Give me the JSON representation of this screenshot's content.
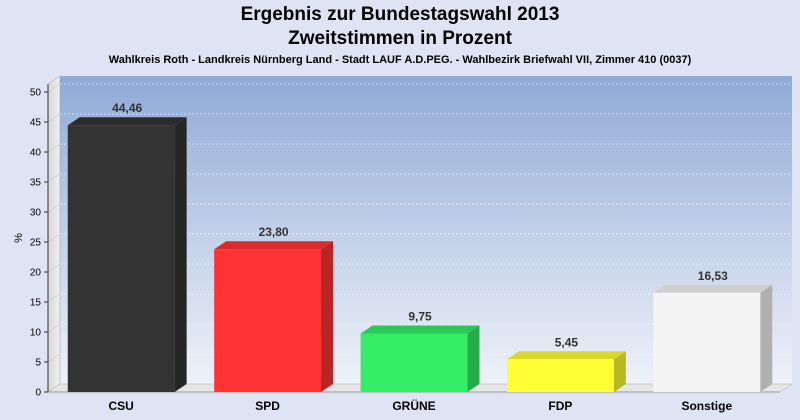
{
  "chart_data": {
    "type": "bar",
    "title": "Ergebnis zur Bundestagswahl 2013",
    "title_line2": "Zweitstimmen in Prozent",
    "subtitle": "Wahlkreis Roth - Landkreis Nürnberg Land - Stadt LAUF A.D.PEG. - Wahlbezirk Briefwahl VII, Zimmer 410 (0037)",
    "ylabel": "%",
    "ylim": [
      0,
      50
    ],
    "yticks": [
      0,
      5,
      10,
      15,
      20,
      25,
      30,
      35,
      40,
      45,
      50
    ],
    "grid": true,
    "categories": [
      "CSU",
      "SPD",
      "GRÜNE",
      "FDP",
      "Sonstige"
    ],
    "values": [
      44.46,
      23.8,
      9.75,
      5.45,
      16.53
    ],
    "value_labels": [
      "44,46",
      "23,80",
      "9,75",
      "5,45",
      "16,53"
    ],
    "colors": [
      "#333333",
      "#ff3333",
      "#33ee66",
      "#ffff33",
      "#f4f4f4"
    ]
  }
}
